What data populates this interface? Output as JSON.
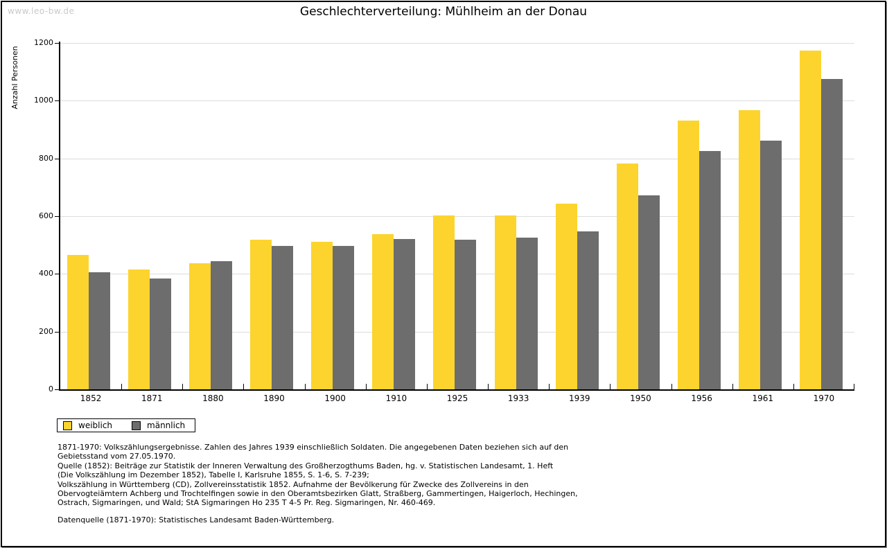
{
  "watermark": "www.leo-bw.de",
  "header": {
    "title": "Geschlechterverteilung: Mühlheim an der Donau"
  },
  "chart_data": {
    "type": "bar",
    "title": "Geschlechterverteilung: Mühlheim an der Donau",
    "xlabel": "",
    "ylabel": "Anzahl Personen",
    "categories": [
      "1852",
      "1871",
      "1880",
      "1890",
      "1900",
      "1910",
      "1925",
      "1933",
      "1939",
      "1950",
      "1956",
      "1961",
      "1970"
    ],
    "series": [
      {
        "name": "weiblich",
        "color": "#fdd42e",
        "values": [
          466,
          416,
          436,
          518,
          511,
          537,
          602,
          602,
          643,
          783,
          932,
          968,
          1174
        ]
      },
      {
        "name": "männlich",
        "color": "#6d6d6d",
        "values": [
          405,
          383,
          443,
          498,
          496,
          522,
          518,
          526,
          547,
          672,
          826,
          861,
          1075
        ]
      }
    ],
    "ylim": [
      0,
      1200
    ],
    "ytick_step": 200,
    "grid": true,
    "gridline_color": "#dcdcdc",
    "legend_position": "bottom-left"
  },
  "footnotes": {
    "lines": [
      "1871-1970: Volkszählungsergebnisse. Zahlen des Jahres 1939 einschließlich Soldaten. Die angegebenen Daten beziehen sich auf den",
      "Gebietsstand vom 27.05.1970.",
      "Quelle (1852): Beiträge zur Statistik der Inneren Verwaltung des Großherzogthums Baden, hg. v. Statistischen Landesamt, 1. Heft",
      "(Die Volkszählung im Dezember 1852), Tabelle I, Karlsruhe 1855, S. 1-6, S. 7-239;",
      "Volkszählung in Württemberg (CD), Zollvereinsstatistik 1852. Aufnahme der Bevölkerung für Zwecke des Zollvereins in den",
      "Obervogteiämtern Achberg und Trochtelfingen sowie in den Oberamtsbezirken Glatt, Straßberg, Gammertingen, Haigerloch, Hechingen,",
      "Ostrach, Sigmaringen, und Wald; StA Sigmaringen Ho 235 T 4-5 Pr. Reg. Sigmaringen, Nr. 460-469."
    ],
    "datasource": "Datenquelle (1871-1970): Statistisches Landesamt Baden-Württemberg."
  }
}
